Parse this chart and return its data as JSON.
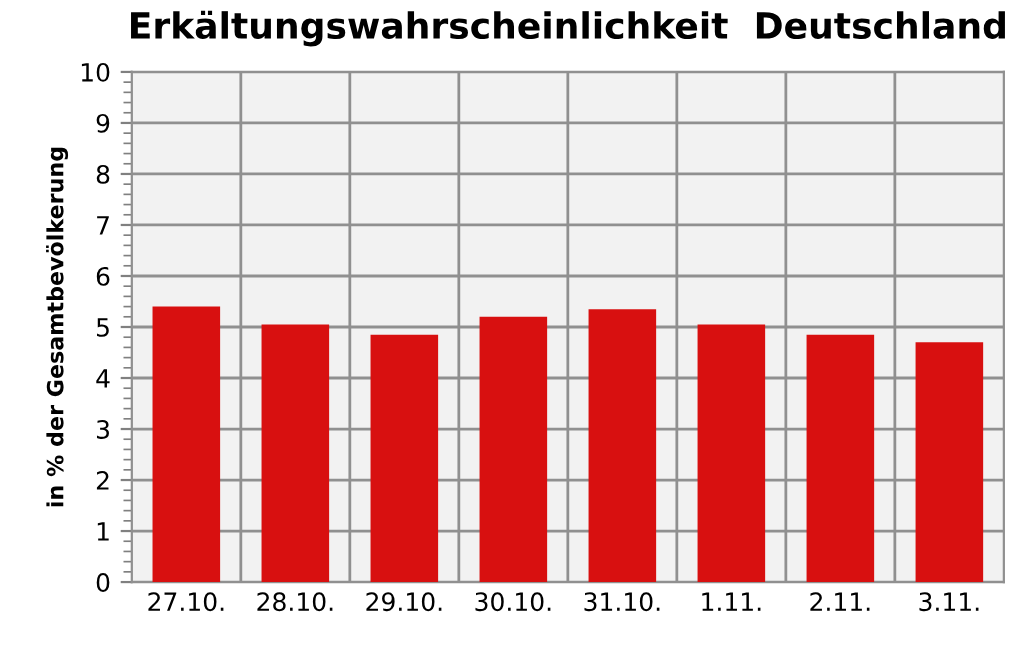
{
  "chart_data": {
    "type": "bar",
    "title": "Erkältungswahrscheinlichkeit  Deutschland",
    "ylabel": "in % der Gesamtbevölkerung",
    "categories": [
      "27.10.",
      "28.10.",
      "29.10.",
      "30.10.",
      "31.10.",
      "1.11.",
      "2.11.",
      "3.11."
    ],
    "values": [
      5.4,
      5.05,
      4.85,
      5.2,
      5.35,
      5.05,
      4.85,
      4.7
    ],
    "color": "#d81010",
    "ylim": [
      0,
      10
    ],
    "yticks": [
      0,
      1,
      2,
      3,
      4,
      5,
      6,
      7,
      8,
      9,
      10
    ],
    "grid": true
  }
}
